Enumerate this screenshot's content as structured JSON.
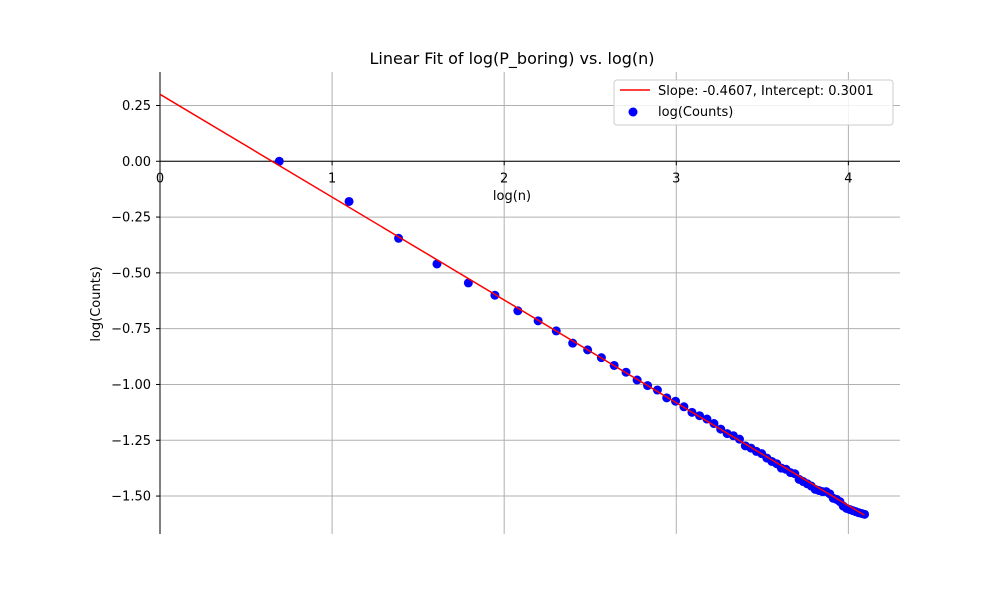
{
  "chart_data": {
    "type": "scatter",
    "title": "Linear Fit of log(P_boring) vs. log(n)",
    "xlabel": "log(n)",
    "ylabel": "log(Counts)",
    "xlim": [
      0,
      4.3
    ],
    "ylim": [
      -1.67,
      0.4
    ],
    "x_ticks": [
      0,
      1,
      2,
      3,
      4
    ],
    "x_tick_labels": [
      "0",
      "1",
      "2",
      "3",
      "4"
    ],
    "y_ticks": [
      0.25,
      0.0,
      -0.25,
      -0.5,
      -0.75,
      -1.0,
      -1.25,
      -1.5
    ],
    "y_tick_labels": [
      "0.25",
      "0.00",
      "−0.25",
      "−0.50",
      "−0.75",
      "−1.00",
      "−1.25",
      "−1.50"
    ],
    "grid": true,
    "legend_position": "top-right",
    "colors": {
      "points": "#0000ff",
      "fit_line": "#ff0000"
    },
    "series": [
      {
        "name": "log(Counts)",
        "kind": "scatter",
        "x": [
          0.6931,
          1.0986,
          1.3863,
          1.6094,
          1.7918,
          1.9459,
          2.0794,
          2.1972,
          2.3026,
          2.3979,
          2.4849,
          2.5649,
          2.6391,
          2.7081,
          2.7726,
          2.8332,
          2.8904,
          2.9444,
          2.9957,
          3.0445,
          3.091,
          3.1355,
          3.1781,
          3.2189,
          3.2581,
          3.2958,
          3.3322,
          3.3673,
          3.4012,
          3.434,
          3.4657,
          3.4965,
          3.5264,
          3.5553,
          3.5835,
          3.6109,
          3.6376,
          3.6636,
          3.6889,
          3.7136,
          3.7377,
          3.7612,
          3.7842,
          3.8067,
          3.8286,
          3.8501,
          3.8712,
          3.8918,
          3.912,
          3.9318,
          3.9512,
          3.9703,
          3.989,
          4.0073,
          4.0254,
          4.0431,
          4.0604,
          4.0775,
          4.0943
        ],
        "y": [
          0.0,
          -0.18,
          -0.345,
          -0.46,
          -0.545,
          -0.6,
          -0.67,
          -0.715,
          -0.76,
          -0.815,
          -0.845,
          -0.88,
          -0.915,
          -0.945,
          -0.98,
          -1.005,
          -1.025,
          -1.06,
          -1.075,
          -1.1,
          -1.125,
          -1.14,
          -1.155,
          -1.175,
          -1.2,
          -1.22,
          -1.23,
          -1.245,
          -1.275,
          -1.285,
          -1.3,
          -1.31,
          -1.33,
          -1.345,
          -1.355,
          -1.375,
          -1.38,
          -1.395,
          -1.4,
          -1.425,
          -1.435,
          -1.445,
          -1.455,
          -1.47,
          -1.475,
          -1.48,
          -1.48,
          -1.49,
          -1.51,
          -1.515,
          -1.525,
          -1.545,
          -1.555,
          -1.56,
          -1.565,
          -1.57,
          -1.575,
          -1.578,
          -1.582
        ]
      },
      {
        "name": "Slope: -0.4607, Intercept: 0.3001",
        "kind": "line",
        "slope": -0.4607,
        "intercept": 0.3001,
        "x_range": [
          0,
          4.0943
        ]
      }
    ]
  }
}
